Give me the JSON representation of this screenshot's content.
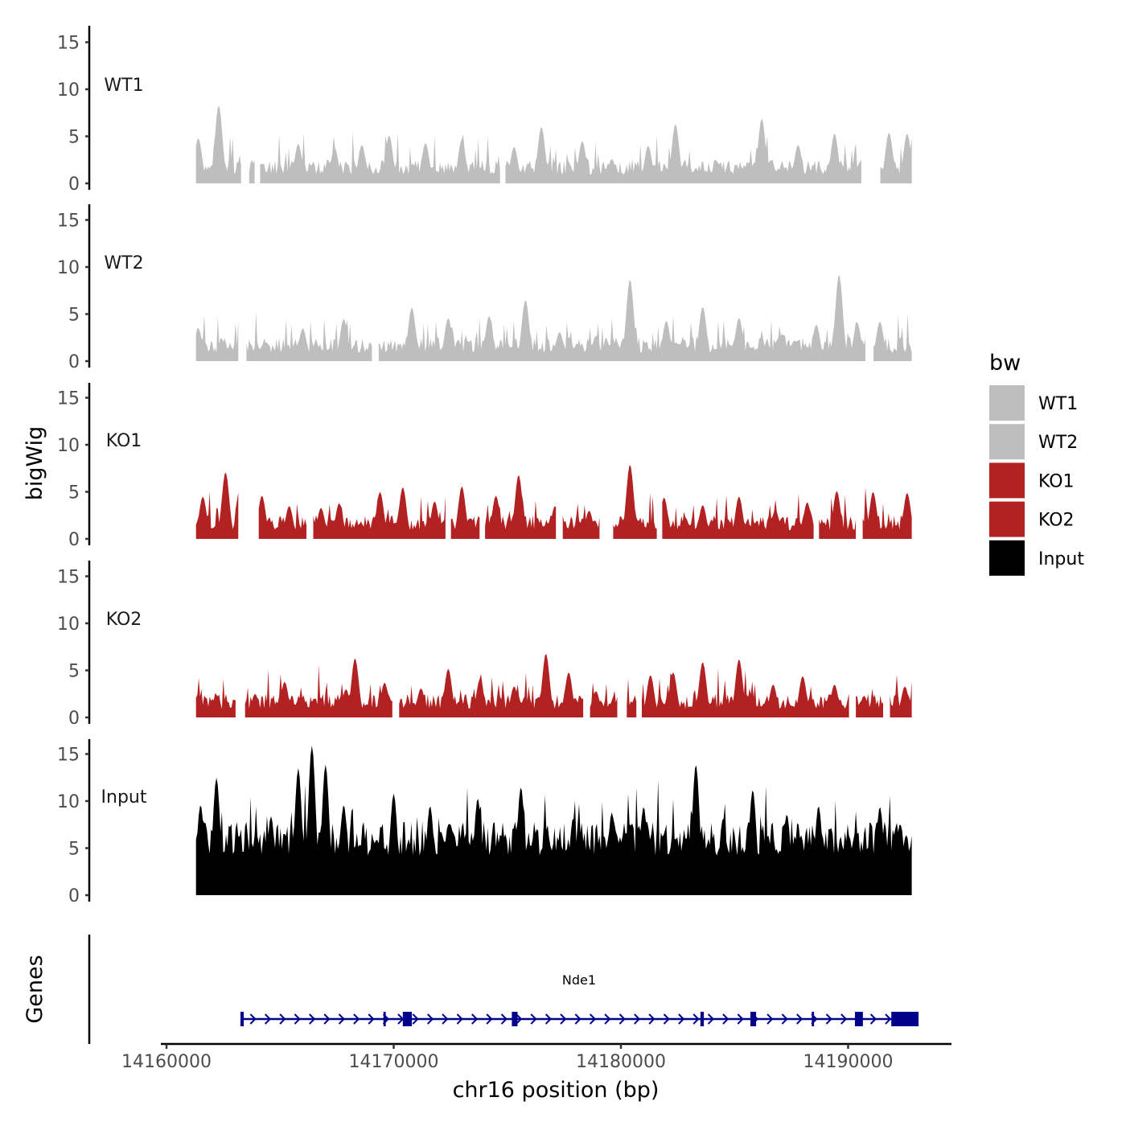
{
  "chart_data": {
    "type": "area",
    "chromosome": "chr16",
    "y_axis_title": "bigWig",
    "x_axis_title": "chr16 position (bp)",
    "genes_axis_title": "Genes",
    "ylim": [
      0,
      16
    ],
    "y_ticks": [
      0,
      5,
      10,
      15
    ],
    "xlim": [
      14159800,
      14194500
    ],
    "x_ticks": [
      14160000,
      14170000,
      14180000,
      14190000
    ],
    "x_tick_labels": [
      "14160000",
      "14170000",
      "14180000",
      "14190000"
    ],
    "region": [
      14161300,
      14192800
    ],
    "legend": {
      "title": "bw",
      "entries": [
        {
          "label": "WT1",
          "color": "#bebebe"
        },
        {
          "label": "WT2",
          "color": "#bebebe"
        },
        {
          "label": "KO1",
          "color": "#b22222"
        },
        {
          "label": "KO2",
          "color": "#b22222"
        },
        {
          "label": "Input",
          "color": "#000000"
        }
      ]
    },
    "series": [
      {
        "name": "WT1",
        "color": "#bebebe",
        "peaks": [
          [
            14161400,
            4.8
          ],
          [
            14162300,
            8.3
          ],
          [
            14164200,
            2.1
          ],
          [
            14165800,
            4.2
          ],
          [
            14167400,
            3.8
          ],
          [
            14168600,
            4.1
          ],
          [
            14169800,
            5.1
          ],
          [
            14171400,
            4.3
          ],
          [
            14173000,
            4.7
          ],
          [
            14175300,
            3.9
          ],
          [
            14176500,
            6.0
          ],
          [
            14178300,
            4.5
          ],
          [
            14179600,
            2.6
          ],
          [
            14181200,
            4.0
          ],
          [
            14182400,
            6.3
          ],
          [
            14184200,
            2.4
          ],
          [
            14186200,
            6.9
          ],
          [
            14187800,
            4.1
          ],
          [
            14189400,
            5.3
          ],
          [
            14191800,
            5.4
          ],
          [
            14192600,
            5.3
          ]
        ],
        "gaps": [
          [
            14163300,
            14163600
          ],
          [
            14163900,
            14164100
          ],
          [
            14174700,
            14174900
          ],
          [
            14190600,
            14191400
          ]
        ]
      },
      {
        "name": "WT2",
        "color": "#bebebe",
        "peaks": [
          [
            14161400,
            3.5
          ],
          [
            14162800,
            1.6
          ],
          [
            14164400,
            2.0
          ],
          [
            14166000,
            3.5
          ],
          [
            14167800,
            4.5
          ],
          [
            14169200,
            2.2
          ],
          [
            14170800,
            5.7
          ],
          [
            14172400,
            4.6
          ],
          [
            14174200,
            4.8
          ],
          [
            14175800,
            6.5
          ],
          [
            14177300,
            3.1
          ],
          [
            14178900,
            2.7
          ],
          [
            14180400,
            8.7
          ],
          [
            14182000,
            4.3
          ],
          [
            14183600,
            5.8
          ],
          [
            14185200,
            4.6
          ],
          [
            14187100,
            2.9
          ],
          [
            14188600,
            3.9
          ],
          [
            14189600,
            9.2
          ],
          [
            14190400,
            4.1
          ],
          [
            14191400,
            4.2
          ]
        ],
        "gaps": [
          [
            14163200,
            14163500
          ],
          [
            14169100,
            14169300
          ],
          [
            14190800,
            14191100
          ]
        ]
      },
      {
        "name": "KO1",
        "color": "#b22222",
        "peaks": [
          [
            14161600,
            4.5
          ],
          [
            14162600,
            7.1
          ],
          [
            14164200,
            4.6
          ],
          [
            14165400,
            3.5
          ],
          [
            14166800,
            3.3
          ],
          [
            14167600,
            3.8
          ],
          [
            14169400,
            5.0
          ],
          [
            14170400,
            5.5
          ],
          [
            14171800,
            4.0
          ],
          [
            14173000,
            5.6
          ],
          [
            14174500,
            4.6
          ],
          [
            14175500,
            6.8
          ],
          [
            14177100,
            3.5
          ],
          [
            14178600,
            3.0
          ],
          [
            14180400,
            7.9
          ],
          [
            14181900,
            4.4
          ],
          [
            14183600,
            3.6
          ],
          [
            14185200,
            4.5
          ],
          [
            14186800,
            3.1
          ],
          [
            14188200,
            3.9
          ],
          [
            14189500,
            5.1
          ],
          [
            14191100,
            5.0
          ],
          [
            14192600,
            4.9
          ]
        ],
        "gaps": [
          [
            14163200,
            14164000
          ],
          [
            14166200,
            14166400
          ],
          [
            14172300,
            14172500
          ],
          [
            14173800,
            14174000
          ],
          [
            14177200,
            14177400
          ],
          [
            14179100,
            14179600
          ],
          [
            14181600,
            14181800
          ],
          [
            14188500,
            14188700
          ],
          [
            14190400,
            14190600
          ]
        ]
      },
      {
        "name": "KO2",
        "color": "#b22222",
        "peaks": [
          [
            14161400,
            2.5
          ],
          [
            14162200,
            2.4
          ],
          [
            14163900,
            2.5
          ],
          [
            14165200,
            3.8
          ],
          [
            14166500,
            2.0
          ],
          [
            14167900,
            3.0
          ],
          [
            14168300,
            6.3
          ],
          [
            14169600,
            3.7
          ],
          [
            14171200,
            3.1
          ],
          [
            14172400,
            5.2
          ],
          [
            14173800,
            4.1
          ],
          [
            14175300,
            3.3
          ],
          [
            14176700,
            6.8
          ],
          [
            14177700,
            4.8
          ],
          [
            14178900,
            2.8
          ],
          [
            14180000,
            3.6
          ],
          [
            14181300,
            4.5
          ],
          [
            14182300,
            4.8
          ],
          [
            14183600,
            5.9
          ],
          [
            14185200,
            6.2
          ],
          [
            14186700,
            3.5
          ],
          [
            14188000,
            4.4
          ],
          [
            14189400,
            3.5
          ],
          [
            14190700,
            2.3
          ],
          [
            14192500,
            3.3
          ]
        ],
        "gaps": [
          [
            14163100,
            14163400
          ],
          [
            14170000,
            14170200
          ],
          [
            14178400,
            14178600
          ],
          [
            14179900,
            14180200
          ],
          [
            14180700,
            14180900
          ],
          [
            14190100,
            14190300
          ],
          [
            14191600,
            14191800
          ]
        ]
      },
      {
        "name": "Input",
        "color": "#000000",
        "peaks": [
          [
            14161500,
            9.6
          ],
          [
            14162200,
            12.5
          ],
          [
            14163200,
            6.3
          ],
          [
            14164600,
            8.4
          ],
          [
            14165800,
            13.5
          ],
          [
            14166400,
            15.9
          ],
          [
            14167000,
            13.9
          ],
          [
            14167800,
            9.6
          ],
          [
            14169100,
            5.9
          ],
          [
            14170000,
            10.8
          ],
          [
            14171600,
            9.5
          ],
          [
            14172400,
            7.5
          ],
          [
            14173700,
            10.3
          ],
          [
            14175600,
            11.5
          ],
          [
            14176200,
            6.8
          ],
          [
            14177900,
            8.2
          ],
          [
            14179600,
            8.8
          ],
          [
            14181000,
            9.4
          ],
          [
            14182300,
            6.4
          ],
          [
            14183300,
            13.9
          ],
          [
            14184500,
            8.2
          ],
          [
            14185800,
            11.2
          ],
          [
            14187300,
            8.6
          ],
          [
            14188700,
            9.5
          ],
          [
            14190000,
            6.5
          ],
          [
            14191400,
            9.4
          ],
          [
            14192300,
            7.5
          ]
        ],
        "gaps": []
      }
    ],
    "gene": {
      "name": "Nde1",
      "start": 14163300,
      "end": 14192900,
      "strand": "+",
      "exons": [
        [
          14163300,
          14163400
        ],
        [
          14169550,
          14169650
        ],
        [
          14170400,
          14170800
        ],
        [
          14175200,
          14175450
        ],
        [
          14183500,
          14183650
        ],
        [
          14185700,
          14185950
        ],
        [
          14188400,
          14188500
        ],
        [
          14190300,
          14190650
        ],
        [
          14191900,
          14193100
        ]
      ]
    }
  }
}
